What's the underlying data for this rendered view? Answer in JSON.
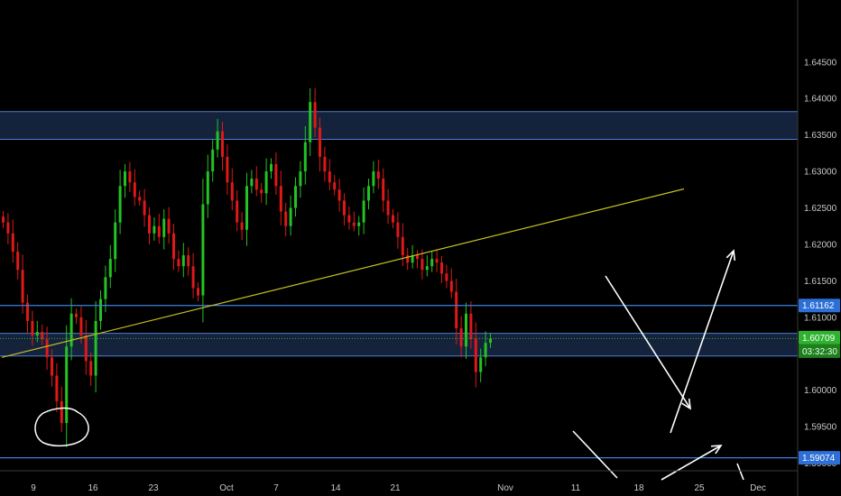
{
  "chart_data": {
    "type": "candlestick",
    "title": "",
    "xlabel": "",
    "ylabel": "",
    "y_axis_position": "right",
    "ylim": [
      1.5855,
      1.6535
    ],
    "y_ticks": [
      "1.59000",
      "1.59500",
      "1.60000",
      "1.60500",
      "1.61000",
      "1.61500",
      "1.62000",
      "1.62500",
      "1.63000",
      "1.63500",
      "1.64000",
      "1.64500"
    ],
    "x_ticks": [
      "9",
      "16",
      "23",
      "Oct",
      "7",
      "14",
      "21",
      "Nov",
      "11",
      "18",
      "25",
      "Dec"
    ],
    "colors": {
      "background": "#000000",
      "bull": "#22c322",
      "bear": "#e01818",
      "zone_fill": "#15223c",
      "zone_line": "#4a7fd4",
      "level_line": "#3d7fe0",
      "trendline": "#c8c020",
      "annotation": "#ffffff",
      "price_tag": "#2fb32f",
      "current_price_line": "#2fb32f"
    },
    "closes": [
      1.623,
      1.6215,
      1.619,
      1.6165,
      1.612,
      1.6095,
      1.6075,
      1.608,
      1.607,
      1.6045,
      1.602,
      1.5985,
      1.5955,
      1.606,
      1.6105,
      1.61,
      1.6075,
      1.604,
      1.602,
      1.6095,
      1.6125,
      1.6155,
      1.618,
      1.623,
      1.628,
      1.63,
      1.6285,
      1.6265,
      1.626,
      1.624,
      1.6215,
      1.6225,
      1.621,
      1.6235,
      1.6215,
      1.618,
      1.617,
      1.6185,
      1.617,
      1.614,
      1.613,
      1.6255,
      1.63,
      1.633,
      1.6355,
      1.632,
      1.6285,
      1.626,
      1.623,
      1.622,
      1.628,
      1.629,
      1.6275,
      1.627,
      1.63,
      1.631,
      1.628,
      1.6245,
      1.6225,
      1.625,
      1.628,
      1.63,
      1.634,
      1.6395,
      1.636,
      1.632,
      1.63,
      1.6285,
      1.6275,
      1.626,
      1.624,
      1.623,
      1.6225,
      1.623,
      1.626,
      1.628,
      1.63,
      1.629,
      1.626,
      1.624,
      1.623,
      1.621,
      1.6185,
      1.6175,
      1.6185,
      1.618,
      1.6165,
      1.617,
      1.618,
      1.6175,
      1.616,
      1.615,
      1.6135,
      1.6085,
      1.606,
      1.6105,
      1.607,
      1.6025,
      1.6045,
      1.6065,
      1.6071
    ],
    "zones": [
      {
        "top": 1.6382,
        "bottom": 1.6344
      },
      {
        "top": 1.6078,
        "bottom": 1.6047
      }
    ],
    "levels": [
      {
        "value": 1.61162,
        "label": "1.61162"
      },
      {
        "value": 1.59074,
        "label": "1.59074"
      }
    ],
    "trendline": {
      "from": {
        "bar": 0,
        "price": 1.6045
      },
      "to": {
        "bar": 140,
        "price": 1.6276
      }
    },
    "current_price": {
      "value": 1.60709,
      "label": "1.60709",
      "countdown": "03:32:30"
    }
  }
}
